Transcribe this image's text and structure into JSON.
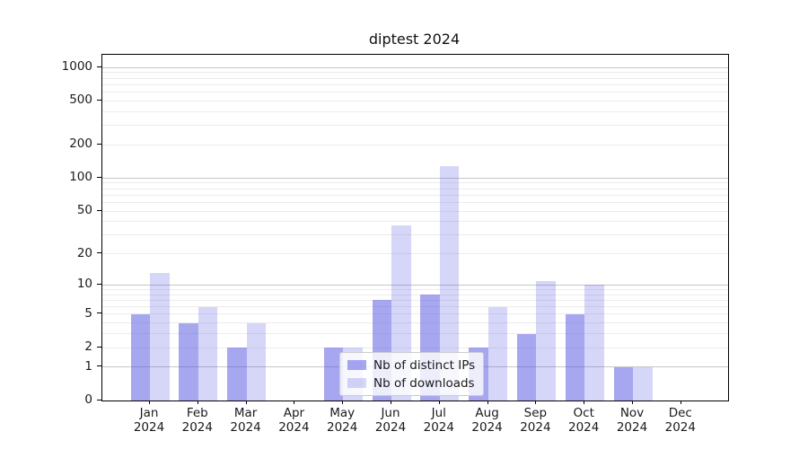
{
  "figure": {
    "title": "diptest 2024"
  },
  "legend": {
    "items": [
      {
        "label": "Nb of distinct IPs",
        "color": "rgba(79,79,225,0.5)"
      },
      {
        "label": "Nb of downloads",
        "color": "rgba(79,79,225,0.235)"
      }
    ]
  },
  "chart_data": {
    "type": "bar",
    "title": "diptest 2024",
    "categories": [
      "Jan 2024",
      "Feb 2024",
      "Mar 2024",
      "Apr 2024",
      "May 2024",
      "Jun 2024",
      "Jul 2024",
      "Aug 2024",
      "Sep 2024",
      "Oct 2024",
      "Nov 2024",
      "Dec 2024"
    ],
    "series": [
      {
        "name": "Nb of distinct IPs",
        "color": "rgba(79,79,225,0.5)",
        "values": [
          5,
          4,
          2,
          0,
          2,
          7,
          8,
          2,
          3,
          5,
          1,
          0
        ]
      },
      {
        "name": "Nb of downloads",
        "color": "rgba(79,79,225,0.235)",
        "values": [
          13,
          6,
          4,
          0,
          2,
          37,
          128,
          6,
          11,
          10,
          1,
          0
        ]
      }
    ],
    "xlabel": "",
    "ylabel": "",
    "y_axis": {
      "scale": "log1p",
      "tick_values": [
        0,
        1,
        2,
        5,
        10,
        20,
        50,
        100,
        200,
        500,
        1000
      ],
      "major_gridlines": [
        1,
        10,
        100,
        1000
      ],
      "minor_gridlines": [
        2,
        3,
        4,
        5,
        6,
        7,
        8,
        9,
        20,
        30,
        40,
        50,
        60,
        70,
        80,
        90,
        200,
        300,
        400,
        500,
        600,
        700,
        800,
        900
      ],
      "range_top": 1300
    },
    "grid": true,
    "legend_position": "lower center",
    "colors": {
      "major_grid": "#c6c6c6",
      "minor_grid": "#ececec",
      "spine": "#000000",
      "text": "#1a1a1a"
    }
  }
}
